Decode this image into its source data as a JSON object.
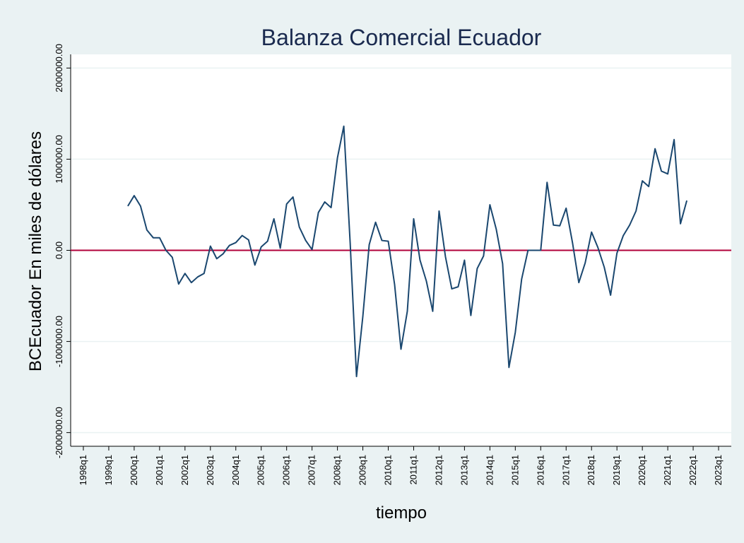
{
  "chart_data": {
    "type": "line",
    "title": "Balanza Comercial Ecuador",
    "x_label": "tiempo",
    "y_label": "BCEcuador En miles de dólares",
    "x": [
      "1999q4",
      "2000q1",
      "2000q2",
      "2000q3",
      "2000q4",
      "2001q1",
      "2001q2",
      "2001q3",
      "2001q4",
      "2002q1",
      "2002q2",
      "2002q3",
      "2002q4",
      "2003q1",
      "2003q2",
      "2003q3",
      "2003q4",
      "2004q1",
      "2004q2",
      "2004q3",
      "2004q4",
      "2005q1",
      "2005q2",
      "2005q3",
      "2005q4",
      "2006q1",
      "2006q2",
      "2006q3",
      "2006q4",
      "2007q1",
      "2007q2",
      "2007q3",
      "2007q4",
      "2008q1",
      "2008q2",
      "2008q3",
      "2008q4",
      "2009q1",
      "2009q2",
      "2009q3",
      "2009q4",
      "2010q1",
      "2010q2",
      "2010q3",
      "2010q4",
      "2011q1",
      "2011q2",
      "2011q3",
      "2011q4",
      "2012q1",
      "2012q2",
      "2012q3",
      "2012q4",
      "2013q1",
      "2013q2",
      "2013q3",
      "2013q4",
      "2014q1",
      "2014q2",
      "2014q3",
      "2014q4",
      "2015q1",
      "2015q2",
      "2015q3",
      "2015q4",
      "2016q1",
      "2016q2",
      "2016q3",
      "2016q4",
      "2017q1",
      "2017q2",
      "2017q3",
      "2017q4",
      "2018q1",
      "2018q2",
      "2018q3",
      "2018q4",
      "2019q1",
      "2019q2",
      "2019q3",
      "2019q4",
      "2020q1",
      "2020q2",
      "2020q3",
      "2020q4",
      "2021q1",
      "2021q2",
      "2021q3",
      "2021q4"
    ],
    "series": [
      {
        "name": "BCEcuador",
        "color": "#1a476f",
        "values": [
          485000,
          600000,
          485000,
          223000,
          138000,
          138000,
          0,
          -77000,
          -370000,
          -254000,
          -354000,
          -292000,
          -254000,
          46000,
          -92000,
          -38000,
          54000,
          85000,
          162000,
          115000,
          -162000,
          38000,
          100000,
          346000,
          23000,
          508000,
          585000,
          254000,
          108000,
          8000,
          415000,
          531000,
          469000,
          1015000,
          1362000,
          85000,
          -1385000,
          -723000,
          62000,
          308000,
          108000,
          100000,
          -377000,
          -1085000,
          -669000,
          346000,
          -108000,
          -338000,
          -669000,
          431000,
          -69000,
          -423000,
          -400000,
          -108000,
          -715000,
          -200000,
          -62000,
          500000,
          231000,
          -146000,
          -1285000,
          -900000,
          -315000,
          0,
          0,
          0,
          746000,
          277000,
          269000,
          462000,
          85000,
          -354000,
          -138000,
          200000,
          31000,
          -185000,
          -492000,
          -31000,
          162000,
          277000,
          431000,
          762000,
          700000,
          1115000,
          869000,
          838000,
          1215000,
          292000,
          546000
        ]
      }
    ],
    "xlim": [
      "1997q3",
      "2023q3"
    ],
    "xticks": [
      "1998q1",
      "1999q1",
      "2000q1",
      "2001q1",
      "2002q1",
      "2003q1",
      "2004q1",
      "2005q1",
      "2006q1",
      "2007q1",
      "2008q1",
      "2009q1",
      "2010q1",
      "2011q1",
      "2012q1",
      "2013q1",
      "2014q1",
      "2015q1",
      "2016q1",
      "2017q1",
      "2018q1",
      "2019q1",
      "2020q1",
      "2021q1",
      "2022q1",
      "2023q1"
    ],
    "ylim": [
      -2150000,
      2150000
    ],
    "yticks": [
      {
        "value": -2000000,
        "label": "-2000000.00"
      },
      {
        "value": -1000000,
        "label": "-1000000.00"
      },
      {
        "value": 0,
        "label": "0.00"
      },
      {
        "value": 1000000,
        "label": "1000000.00"
      },
      {
        "value": 2000000,
        "label": "2000000.00"
      }
    ],
    "grid": true,
    "reference_line": {
      "value": 0,
      "color": "#b0003a"
    }
  }
}
